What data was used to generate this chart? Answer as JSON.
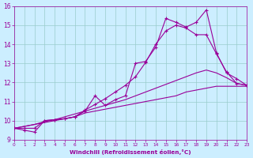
{
  "xlabel": "Windchill (Refroidissement éolien,°C)",
  "xlim": [
    0,
    23
  ],
  "ylim": [
    9,
    16
  ],
  "xticks": [
    0,
    1,
    2,
    3,
    4,
    5,
    6,
    7,
    8,
    9,
    10,
    11,
    12,
    13,
    14,
    15,
    16,
    17,
    18,
    19,
    20,
    21,
    22,
    23
  ],
  "yticks": [
    9,
    10,
    11,
    12,
    13,
    14,
    15,
    16
  ],
  "bg_color": "#cceeff",
  "line_color": "#990099",
  "grid_color": "#99cccc",
  "line1_x": [
    0,
    1,
    2,
    3,
    4,
    5,
    6,
    7,
    8,
    9,
    10,
    11,
    12,
    13,
    14,
    15,
    16,
    17,
    18,
    19,
    20,
    21,
    22,
    23
  ],
  "line1_y": [
    9.6,
    9.7,
    9.8,
    9.9,
    10.0,
    10.1,
    10.2,
    10.4,
    10.5,
    10.6,
    10.7,
    10.8,
    10.9,
    11.0,
    11.1,
    11.2,
    11.3,
    11.5,
    11.6,
    11.7,
    11.8,
    11.8,
    11.8,
    11.8
  ],
  "line2_x": [
    0,
    1,
    2,
    3,
    4,
    5,
    6,
    7,
    8,
    9,
    10,
    11,
    12,
    13,
    14,
    15,
    16,
    17,
    18,
    19,
    20,
    21,
    22,
    23
  ],
  "line2_y": [
    9.6,
    9.7,
    9.8,
    9.95,
    10.05,
    10.2,
    10.35,
    10.5,
    10.65,
    10.8,
    10.95,
    11.1,
    11.3,
    11.5,
    11.7,
    11.9,
    12.1,
    12.3,
    12.5,
    12.65,
    12.5,
    12.25,
    11.95,
    11.85
  ],
  "line3_x": [
    0,
    1,
    2,
    3,
    4,
    5,
    6,
    7,
    8,
    9,
    10,
    11,
    12,
    13,
    14,
    15,
    16,
    17,
    18,
    19,
    20,
    21,
    22,
    23
  ],
  "line3_y": [
    9.6,
    9.5,
    9.4,
    10.0,
    10.05,
    10.1,
    10.2,
    10.5,
    11.3,
    10.8,
    11.1,
    11.3,
    13.0,
    13.1,
    13.85,
    15.35,
    15.15,
    14.9,
    15.15,
    15.8,
    13.55,
    12.5,
    12.2,
    11.85
  ],
  "line4_x": [
    0,
    1,
    2,
    3,
    4,
    5,
    6,
    7,
    8,
    9,
    10,
    11,
    12,
    13,
    14,
    15,
    16,
    17,
    18,
    19,
    20,
    21,
    22,
    23
  ],
  "line4_y": [
    9.6,
    9.6,
    9.6,
    10.0,
    10.05,
    10.1,
    10.2,
    10.55,
    10.85,
    11.15,
    11.5,
    11.85,
    12.3,
    13.05,
    14.0,
    14.7,
    15.0,
    14.85,
    14.5,
    14.5,
    13.5,
    12.55,
    11.95,
    11.85
  ]
}
